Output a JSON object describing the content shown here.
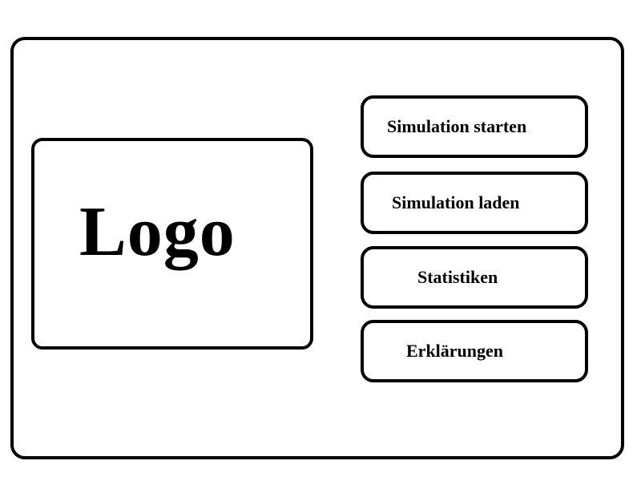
{
  "logo": {
    "text": "Logo"
  },
  "menu": {
    "start_label": "Simulation starten",
    "load_label": "Simulation laden",
    "stats_label": "Statistiken",
    "help_label": "Erklärungen"
  }
}
